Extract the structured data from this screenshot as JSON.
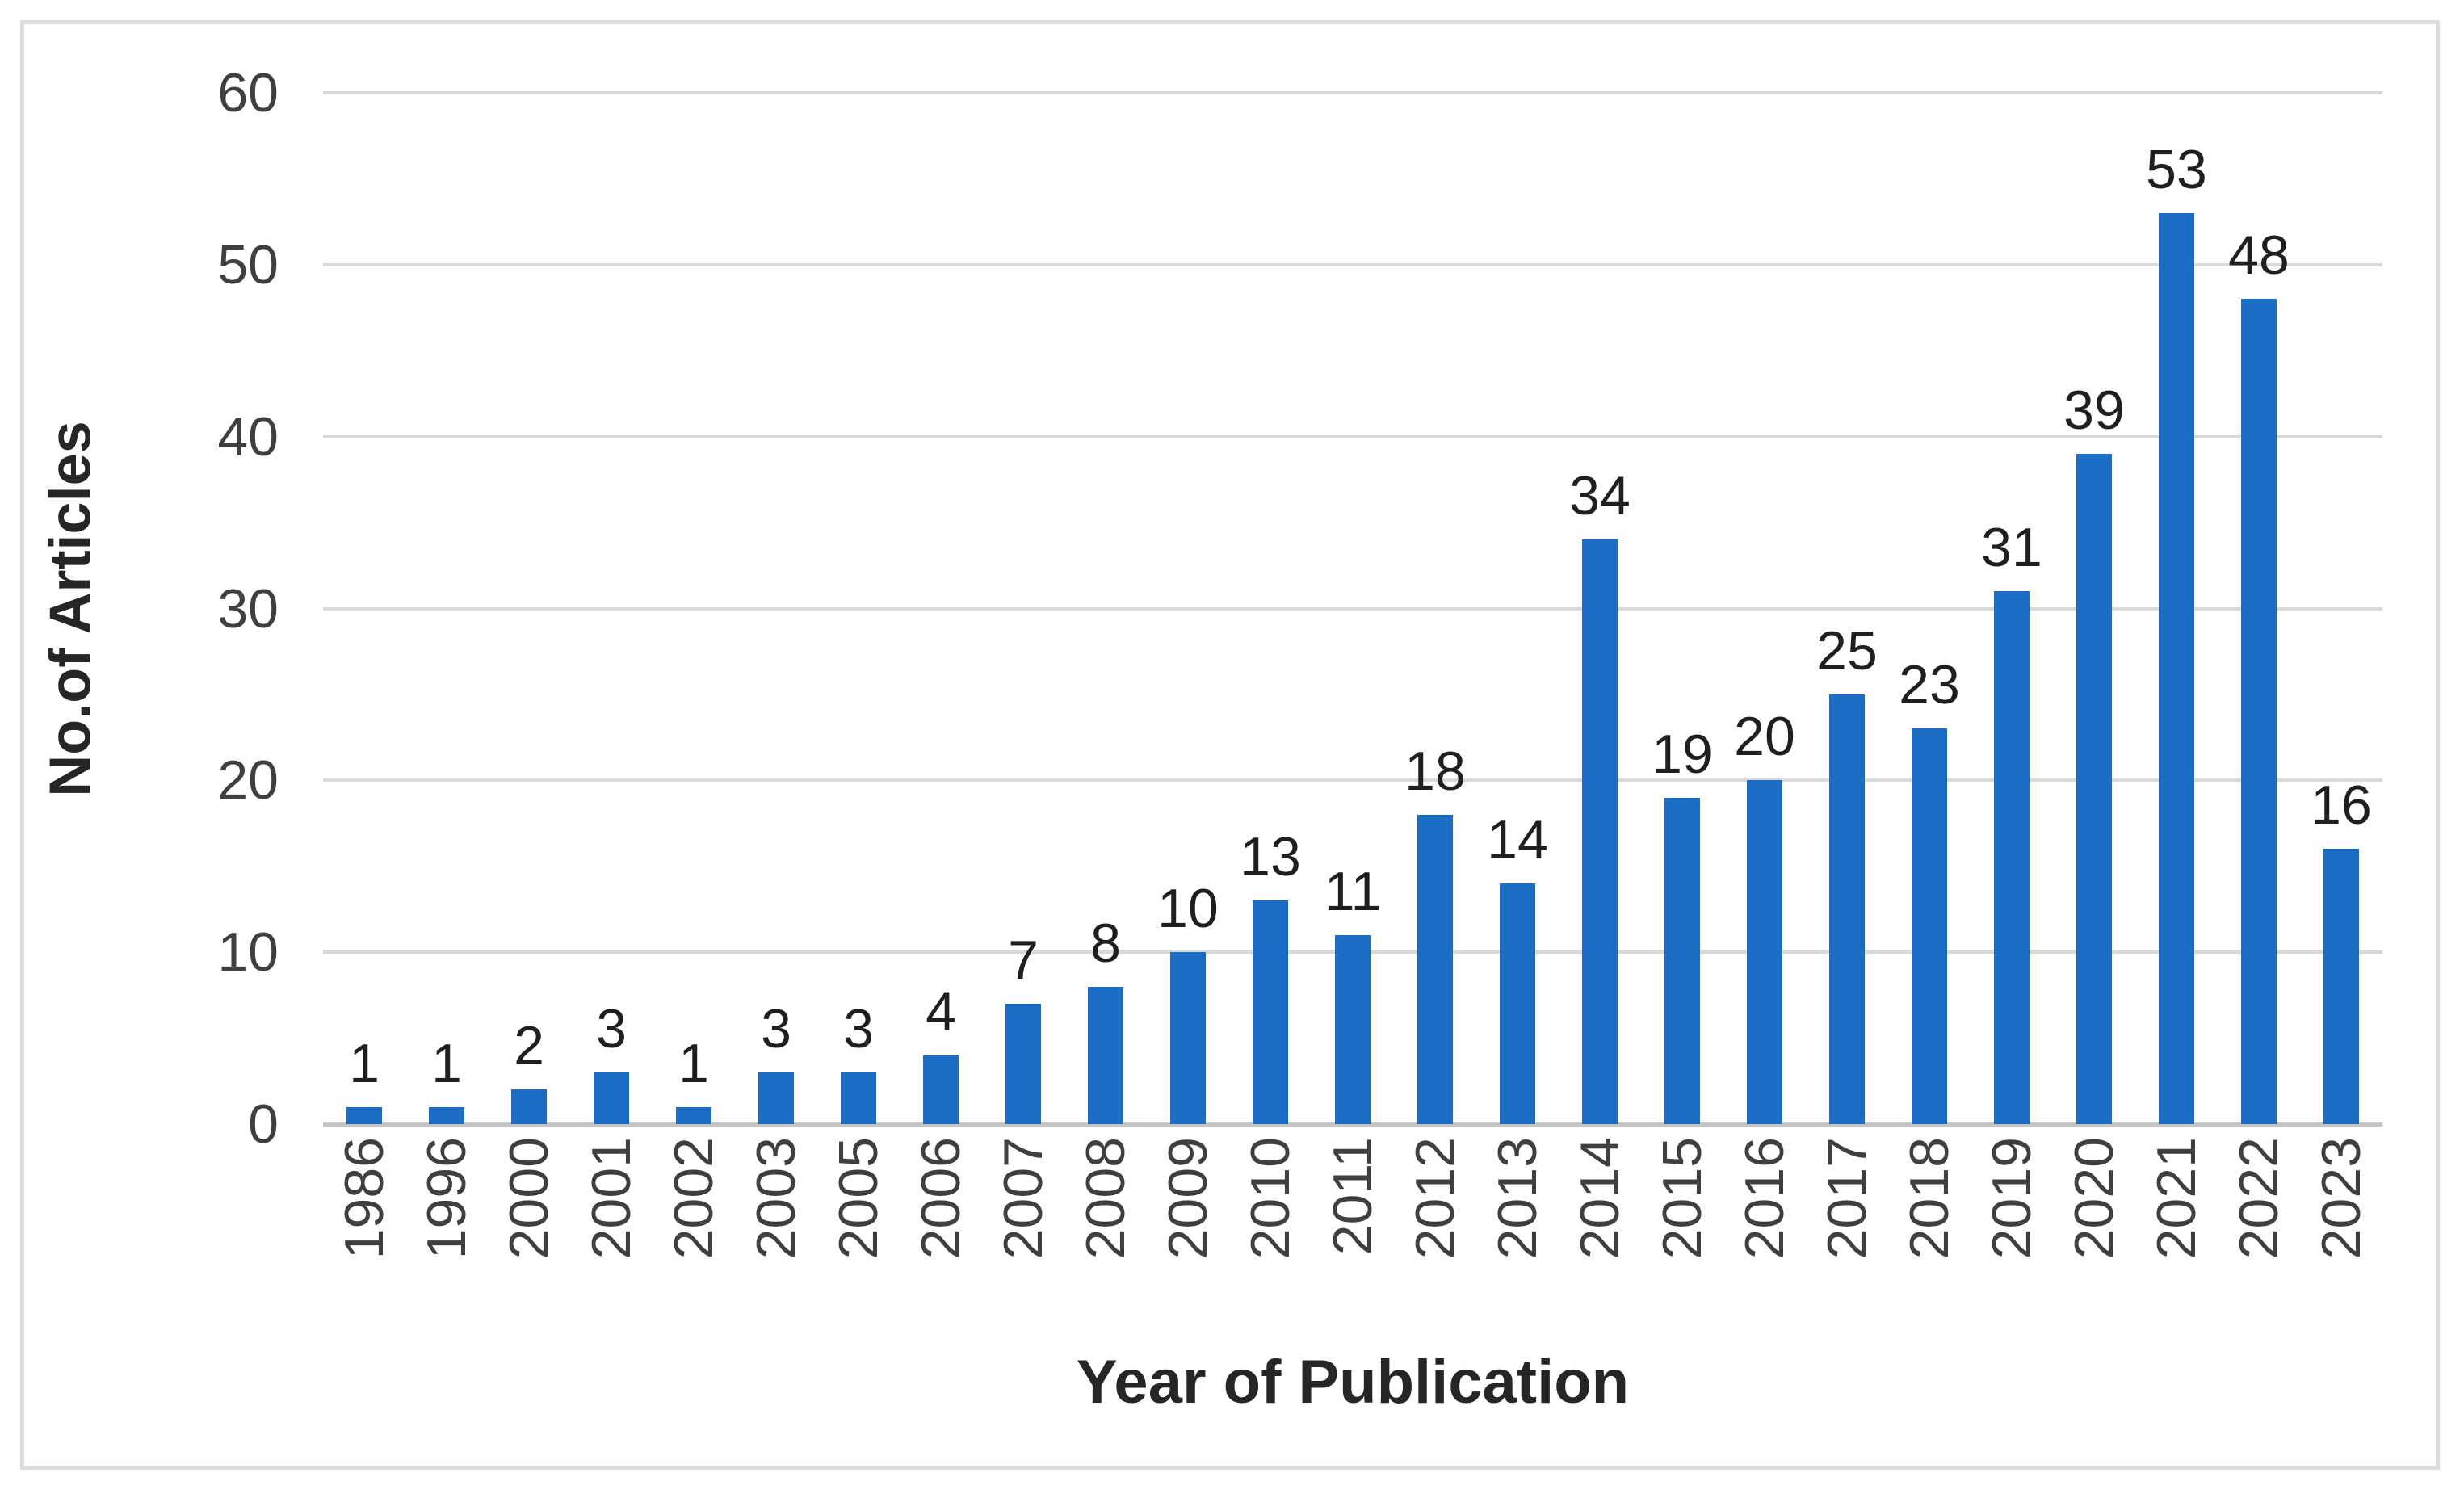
{
  "chart_data": {
    "type": "bar",
    "categories": [
      "1986",
      "1996",
      "2000",
      "2001",
      "2002",
      "2003",
      "2005",
      "2006",
      "2007",
      "2008",
      "2009",
      "2010",
      "2011",
      "2012",
      "2013",
      "2014",
      "2015",
      "2016",
      "2017",
      "2018",
      "2019",
      "2020",
      "2021",
      "2022",
      "2023"
    ],
    "values": [
      1,
      1,
      2,
      3,
      1,
      3,
      3,
      4,
      7,
      8,
      10,
      13,
      11,
      18,
      14,
      34,
      19,
      20,
      25,
      23,
      31,
      39,
      53,
      48,
      16
    ],
    "xlabel": "Year of Publication",
    "ylabel": "No.of Articles",
    "ylim": [
      0,
      60
    ],
    "yticks": [
      0,
      10,
      20,
      30,
      40,
      50,
      60
    ],
    "grid": true,
    "legend": false,
    "data_labels": true,
    "x_tick_rotation_deg": -90,
    "colors": {
      "bar": "#1d6cc5",
      "gridline": "#d9d9d9",
      "axis_baseline": "#c6c6c6",
      "tick_text": "#3f3f3f",
      "data_label_text": "#1f1f1f",
      "axis_title_text": "#262626",
      "frame_border": "#dcdcdc",
      "background": "#ffffff"
    }
  }
}
